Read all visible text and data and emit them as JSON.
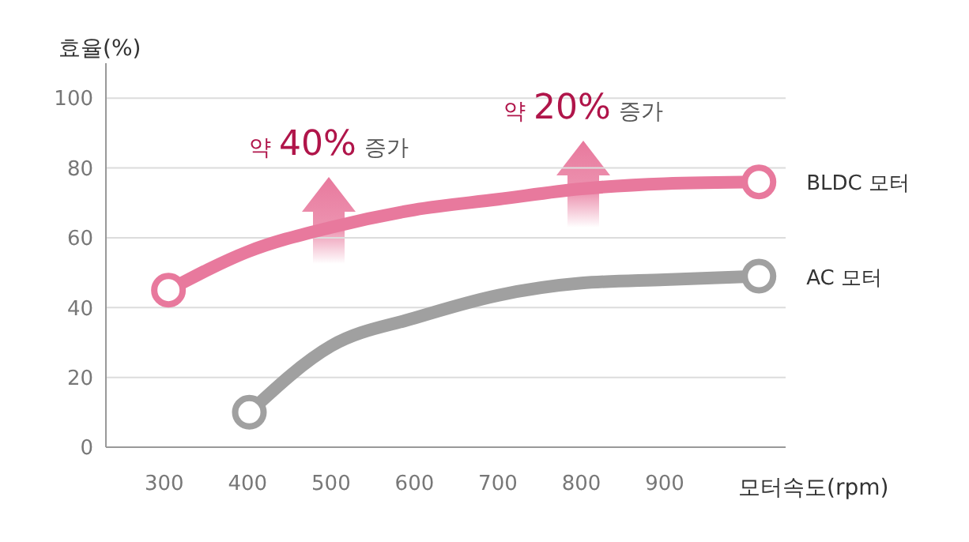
{
  "chart_data": {
    "type": "line",
    "ylabel": "효율(%)",
    "xlabel": "모터속도(rpm)",
    "xlim": [
      230,
      1045
    ],
    "xticks": [
      300,
      400,
      500,
      600,
      700,
      800,
      900
    ],
    "ylim": [
      0,
      110
    ],
    "yticks": [
      0,
      20,
      40,
      60,
      80,
      100
    ],
    "grid": "y",
    "line_style": "solid",
    "series": [
      {
        "name": "BLDC 모터",
        "color": "#e8799d",
        "x": [
          305,
          400,
          500,
          600,
          700,
          800,
          900,
          1013
        ],
        "values": [
          45,
          56,
          63,
          68,
          71,
          74,
          75.5,
          76
        ]
      },
      {
        "name": "AC 모터",
        "color": "#a0a0a0",
        "x": [
          402,
          500,
          600,
          700,
          800,
          900,
          1013
        ],
        "values": [
          10,
          29,
          37,
          43.5,
          47,
          48,
          49
        ]
      }
    ],
    "annotations": [
      "약 40% 증가",
      "약 20% 증가"
    ]
  }
}
